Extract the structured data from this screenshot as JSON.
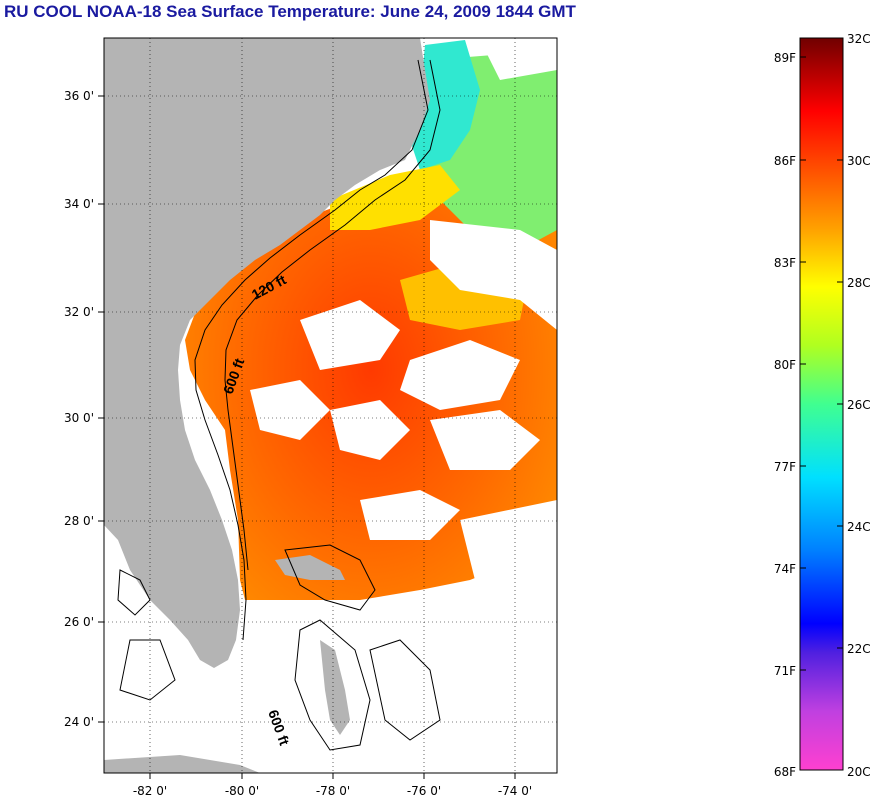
{
  "title": "RU COOL  NOAA-18  Sea Surface Temperature:  June 24, 2009 1844 GMT",
  "map": {
    "lon_labels": [
      "-82 0'",
      "-80 0'",
      "-78 0'",
      "-76 0'",
      "-74 0'"
    ],
    "lat_labels": [
      "36 0'",
      "34 0'",
      "32 0'",
      "30 0'",
      "28 0'",
      "26 0'",
      "24 0'"
    ],
    "contour_labels": [
      "120 ft",
      "600 ft",
      "600 ft"
    ],
    "land_color": "#b4b4b4",
    "cloud_color": "#ffffff"
  },
  "colorbar": {
    "fahrenheit_labels": [
      "89F",
      "86F",
      "83F",
      "80F",
      "77F",
      "74F",
      "71F",
      "68F"
    ],
    "celsius_labels": [
      "32C",
      "30C",
      "28C",
      "26C",
      "24C",
      "22C",
      "20C"
    ],
    "colors": [
      "#ff40c0",
      "#9040d0",
      "#0000ff",
      "#0080ff",
      "#00e0ff",
      "#40ff80",
      "#c0ff00",
      "#ffff00",
      "#ffa000",
      "#ff5000",
      "#ff0000",
      "#c00000",
      "#700000"
    ]
  }
}
